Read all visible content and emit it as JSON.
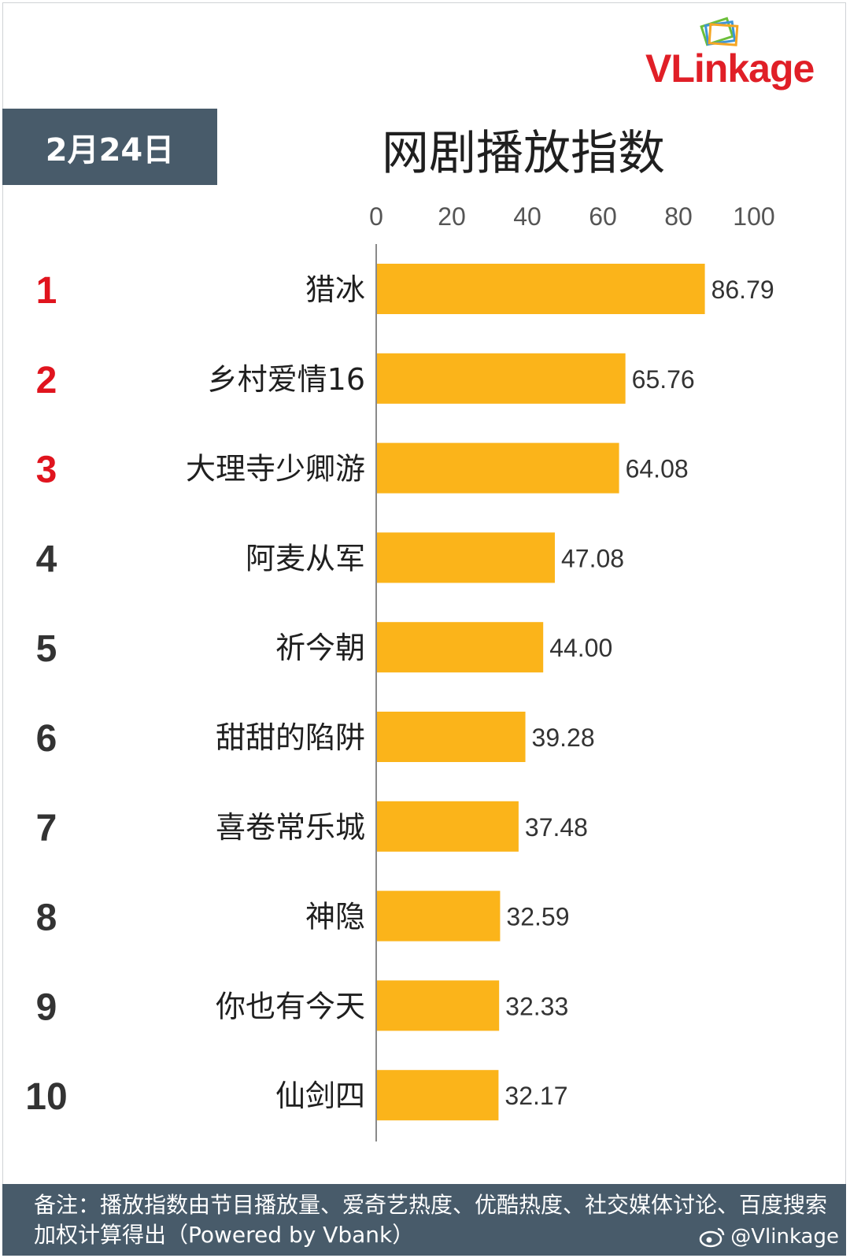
{
  "brand": {
    "logo_text": "VLinkage",
    "colors": {
      "red": "#e01f27",
      "frame": "#3e95d6",
      "green": "#6cbf3a",
      "orange": "#f5a623"
    }
  },
  "header": {
    "date": "2月24日",
    "title": "网剧播放指数"
  },
  "chart_data": {
    "type": "bar",
    "orientation": "horizontal",
    "x_ticks": [
      "0",
      "20",
      "40",
      "60",
      "80",
      "100"
    ],
    "xlim": [
      0,
      100
    ],
    "categories": [
      "猎冰",
      "乡村爱情16",
      "大理寺少卿游",
      "阿麦从军",
      "祈今朝",
      "甜甜的陷阱",
      "喜卷常乐城",
      "神隐",
      "你也有今天",
      "仙剑四"
    ],
    "ranks": [
      "1",
      "2",
      "3",
      "4",
      "5",
      "6",
      "7",
      "8",
      "9",
      "10"
    ],
    "values": [
      86.79,
      65.76,
      64.08,
      47.08,
      44.0,
      39.28,
      37.48,
      32.59,
      32.33,
      32.17
    ],
    "value_labels": [
      "86.79",
      "65.76",
      "64.08",
      "47.08",
      "44.00",
      "39.28",
      "37.48",
      "32.59",
      "32.33",
      "32.17"
    ],
    "bar_color": "#fbb41a",
    "top_rank_color": "#e0141e",
    "rank_color": "#333333",
    "grid": false,
    "legend": "none"
  },
  "footer": {
    "note": "备注：播放指数由节目播放量、爱奇艺热度、优酷热度、社交媒体讨论、百度搜索加权计算得出（Powered by Vbank）",
    "weibo_handle": "@Vlinkage",
    "weibo_icon": "weibo-icon"
  }
}
